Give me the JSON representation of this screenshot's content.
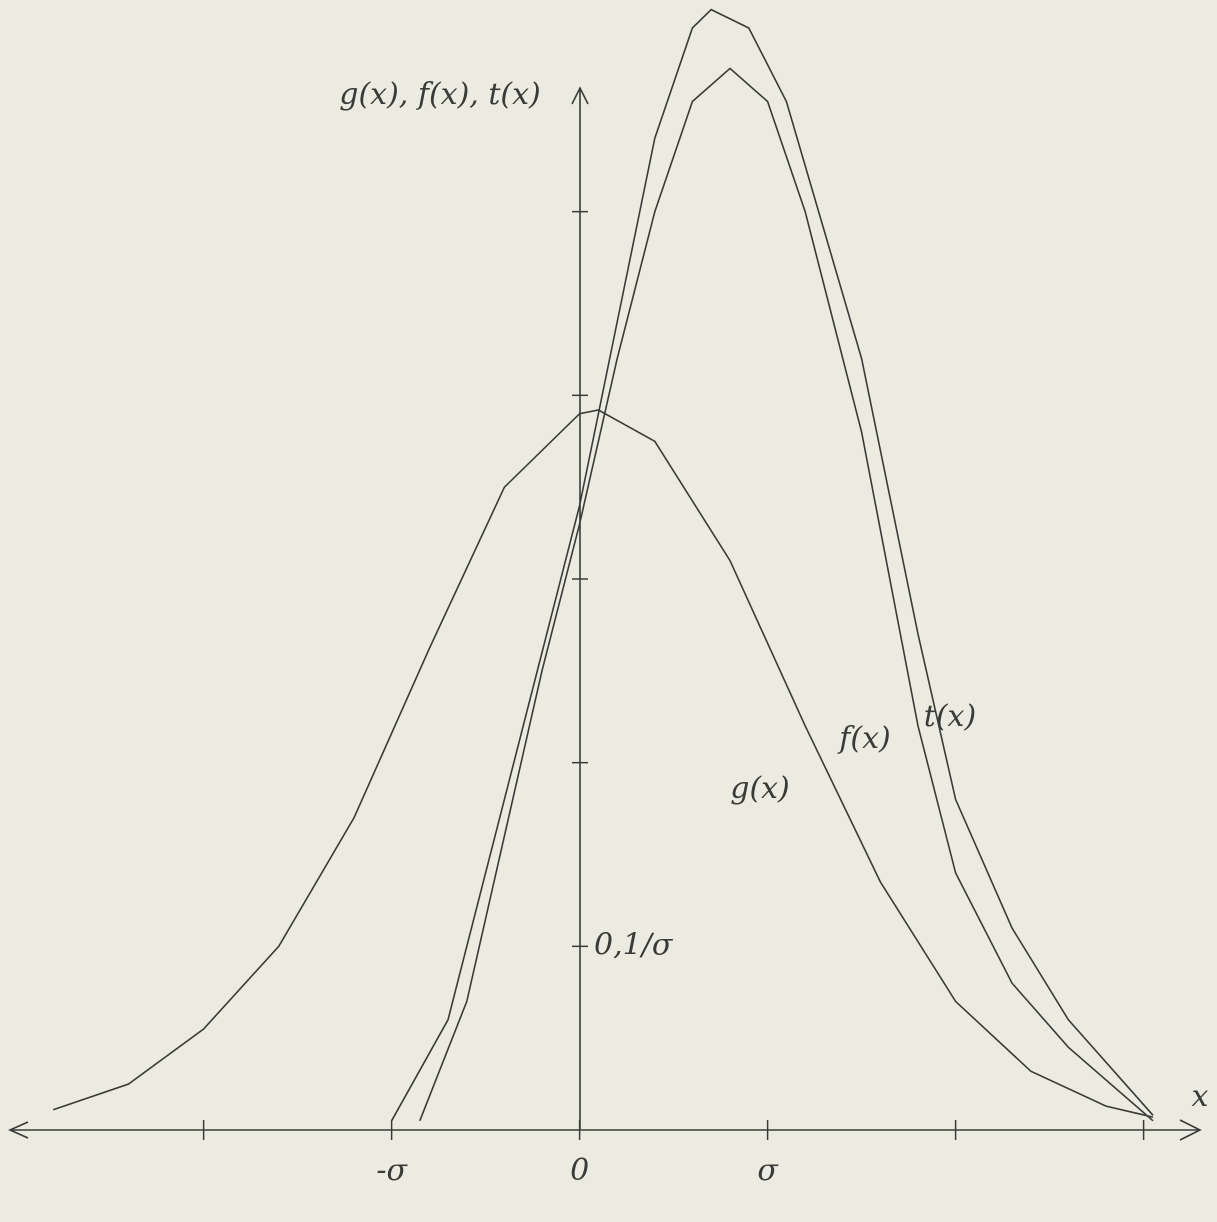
{
  "chart_data": {
    "type": "line",
    "y_label": "g(x), f(x), t(x)",
    "x_label": "x",
    "xlim": [
      -3.03,
      3.3
    ],
    "ylim": [
      0,
      0.6
    ],
    "xticks": [
      {
        "value": -1,
        "label": "-σ"
      },
      {
        "value": 0,
        "label": "0"
      },
      {
        "value": 1,
        "label": "σ"
      }
    ],
    "minor_xticks": [
      -2,
      2,
      3
    ],
    "yticks": [
      {
        "value": 0.1,
        "label": "0,1/σ"
      }
    ],
    "minor_yticks": [
      0.2,
      0.3,
      0.4,
      0.5
    ],
    "color": "#3a3a38",
    "series": [
      {
        "name": "g(x)",
        "x": [
          -2.8,
          -2.4,
          -2,
          -1.6,
          -1.2,
          -0.8,
          -0.4,
          0,
          0.1,
          0.4,
          0.8,
          1.2,
          1.6,
          2,
          2.4,
          2.8,
          3.05
        ],
        "values": [
          0.011,
          0.025,
          0.055,
          0.1,
          0.17,
          0.262,
          0.35,
          0.39,
          0.392,
          0.375,
          0.31,
          0.22,
          0.135,
          0.07,
          0.032,
          0.013,
          0.007
        ]
      },
      {
        "name": "f(x)",
        "x": [
          -0.85,
          -0.6,
          -0.4,
          -0.2,
          0,
          0.2,
          0.4,
          0.6,
          0.8,
          1,
          1.2,
          1.5,
          1.8,
          2,
          2.3,
          2.6,
          3.05
        ],
        "values": [
          0.005,
          0.07,
          0.16,
          0.25,
          0.33,
          0.42,
          0.5,
          0.56,
          0.578,
          0.56,
          0.5,
          0.38,
          0.22,
          0.14,
          0.08,
          0.045,
          0.005
        ]
      },
      {
        "name": "t(x)",
        "x": [
          -1,
          -0.7,
          -0.4,
          -0.2,
          0,
          0.2,
          0.4,
          0.6,
          0.7,
          0.9,
          1.1,
          1.3,
          1.5,
          1.8,
          2,
          2.3,
          2.6,
          3.05
        ],
        "values": [
          0.005,
          0.06,
          0.18,
          0.26,
          0.34,
          0.44,
          0.54,
          0.6,
          0.61,
          0.6,
          0.56,
          0.49,
          0.42,
          0.27,
          0.18,
          0.11,
          0.06,
          0.008
        ]
      }
    ]
  }
}
